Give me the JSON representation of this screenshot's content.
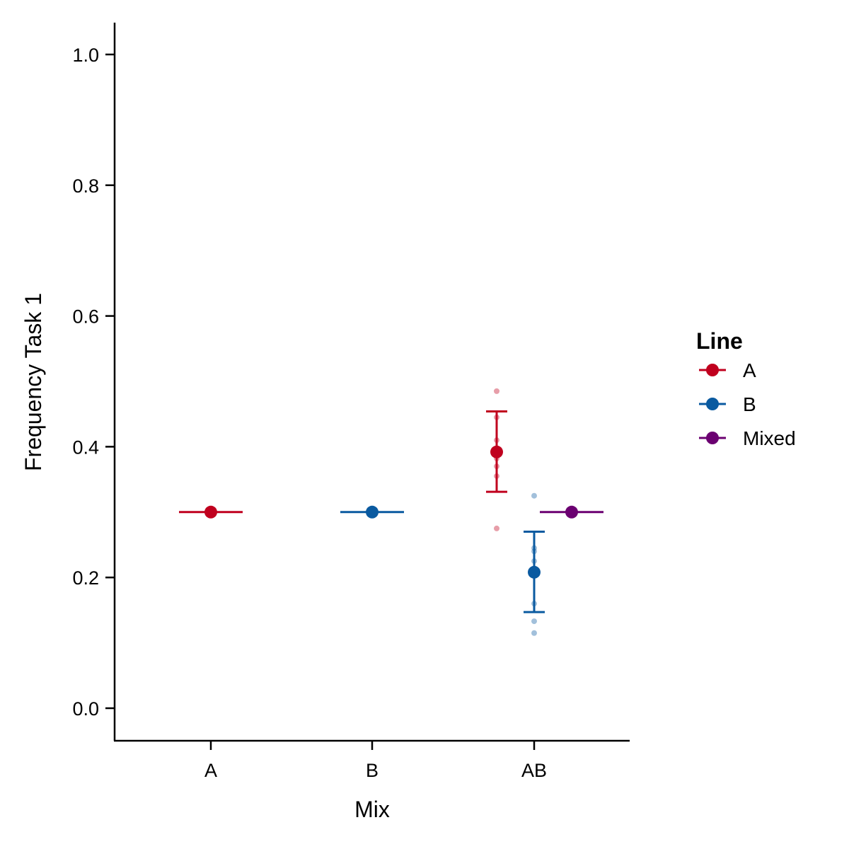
{
  "chart_data": {
    "type": "scatter",
    "subtype": "dot-with-error-bars",
    "title": "",
    "xlabel": "Mix",
    "ylabel": "Frequency Task 1",
    "categories": [
      "A",
      "B",
      "AB"
    ],
    "ylim": [
      -0.05,
      1.05
    ],
    "yticks": [
      0.0,
      0.2,
      0.4,
      0.6,
      0.8,
      1.0
    ],
    "ytick_labels": [
      "0.0",
      "0.2",
      "0.4",
      "0.6",
      "0.8",
      "1.0"
    ],
    "grid": false,
    "legend": {
      "title": "Line",
      "position": "right",
      "entries": [
        {
          "label": "A",
          "color": "#C0001E"
        },
        {
          "label": "B",
          "color": "#0A5AA0"
        },
        {
          "label": "Mixed",
          "color": "#6B0071"
        }
      ]
    },
    "series": [
      {
        "name": "A",
        "color": "#C0001E",
        "points": [
          {
            "category": "A",
            "mean": 0.3,
            "lower": 0.3,
            "upper": 0.3,
            "raw": []
          },
          {
            "category": "AB",
            "mean": 0.392,
            "lower": 0.331,
            "upper": 0.454,
            "raw": [
              0.485,
              0.445,
              0.41,
              0.395,
              0.382,
              0.37,
              0.355,
              0.275
            ]
          }
        ]
      },
      {
        "name": "B",
        "color": "#0A5AA0",
        "points": [
          {
            "category": "B",
            "mean": 0.3,
            "lower": 0.3,
            "upper": 0.3,
            "raw": []
          },
          {
            "category": "AB",
            "mean": 0.208,
            "lower": 0.147,
            "upper": 0.27,
            "raw": [
              0.325,
              0.245,
              0.24,
              0.225,
              0.21,
              0.16,
              0.133,
              0.115
            ]
          }
        ]
      },
      {
        "name": "Mixed",
        "color": "#6B0071",
        "points": [
          {
            "category": "AB",
            "mean": 0.3,
            "lower": 0.3,
            "upper": 0.3,
            "raw": []
          }
        ]
      }
    ]
  }
}
